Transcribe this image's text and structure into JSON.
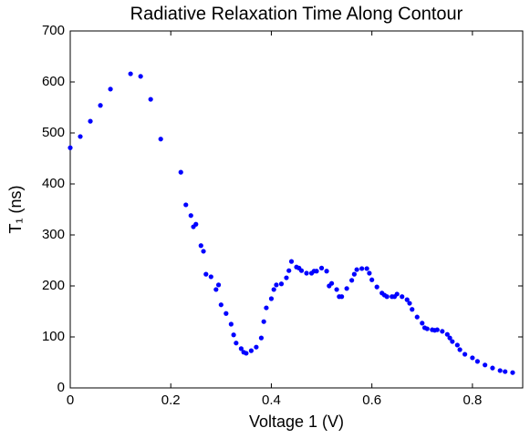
{
  "chart_data": {
    "type": "scatter",
    "title": "Radiative Relaxation Time Along Contour",
    "x_label": "Voltage 1 (V)",
    "y_label": "T₁ (ns)",
    "color": "#0000ff",
    "xlim": [
      0,
      0.9
    ],
    "ylim": [
      0,
      700
    ],
    "xticks": [
      0,
      0.2,
      0.4,
      0.6,
      0.8
    ],
    "yticks": [
      0,
      100,
      200,
      300,
      400,
      500,
      600,
      700
    ],
    "x": [
      0,
      0.02,
      0.04,
      0.06,
      0.08,
      0.12,
      0.14,
      0.16,
      0.18,
      0.22,
      0.23,
      0.24,
      0.245,
      0.25,
      0.26,
      0.265,
      0.27,
      0.28,
      0.29,
      0.295,
      0.3,
      0.31,
      0.32,
      0.325,
      0.33,
      0.34,
      0.345,
      0.35,
      0.36,
      0.37,
      0.38,
      0.385,
      0.39,
      0.4,
      0.405,
      0.41,
      0.42,
      0.43,
      0.435,
      0.44,
      0.45,
      0.455,
      0.46,
      0.47,
      0.48,
      0.485,
      0.49,
      0.5,
      0.51,
      0.515,
      0.52,
      0.53,
      0.535,
      0.54,
      0.55,
      0.56,
      0.565,
      0.57,
      0.58,
      0.59,
      0.595,
      0.6,
      0.61,
      0.62,
      0.625,
      0.63,
      0.64,
      0.645,
      0.65,
      0.66,
      0.67,
      0.675,
      0.68,
      0.69,
      0.7,
      0.705,
      0.71,
      0.72,
      0.725,
      0.73,
      0.74,
      0.75,
      0.755,
      0.76,
      0.77,
      0.775,
      0.785,
      0.8,
      0.81,
      0.825,
      0.84,
      0.855,
      0.865,
      0.88
    ],
    "values": [
      471,
      493,
      523,
      554,
      586,
      616,
      611,
      566,
      488,
      423,
      359,
      338,
      316,
      321,
      279,
      268,
      223,
      218,
      193,
      202,
      163,
      146,
      125,
      104,
      88,
      77,
      70,
      68,
      73,
      80,
      98,
      130,
      157,
      175,
      193,
      202,
      204,
      216,
      230,
      248,
      237,
      235,
      230,
      225,
      225,
      229,
      229,
      235,
      229,
      200,
      205,
      193,
      179,
      179,
      195,
      211,
      223,
      232,
      234,
      234,
      225,
      212,
      198,
      186,
      182,
      179,
      179,
      179,
      184,
      179,
      173,
      166,
      154,
      139,
      127,
      118,
      116,
      114,
      113,
      114,
      111,
      105,
      98,
      91,
      84,
      75,
      66,
      59,
      52,
      45,
      39,
      34,
      32,
      30
    ]
  }
}
